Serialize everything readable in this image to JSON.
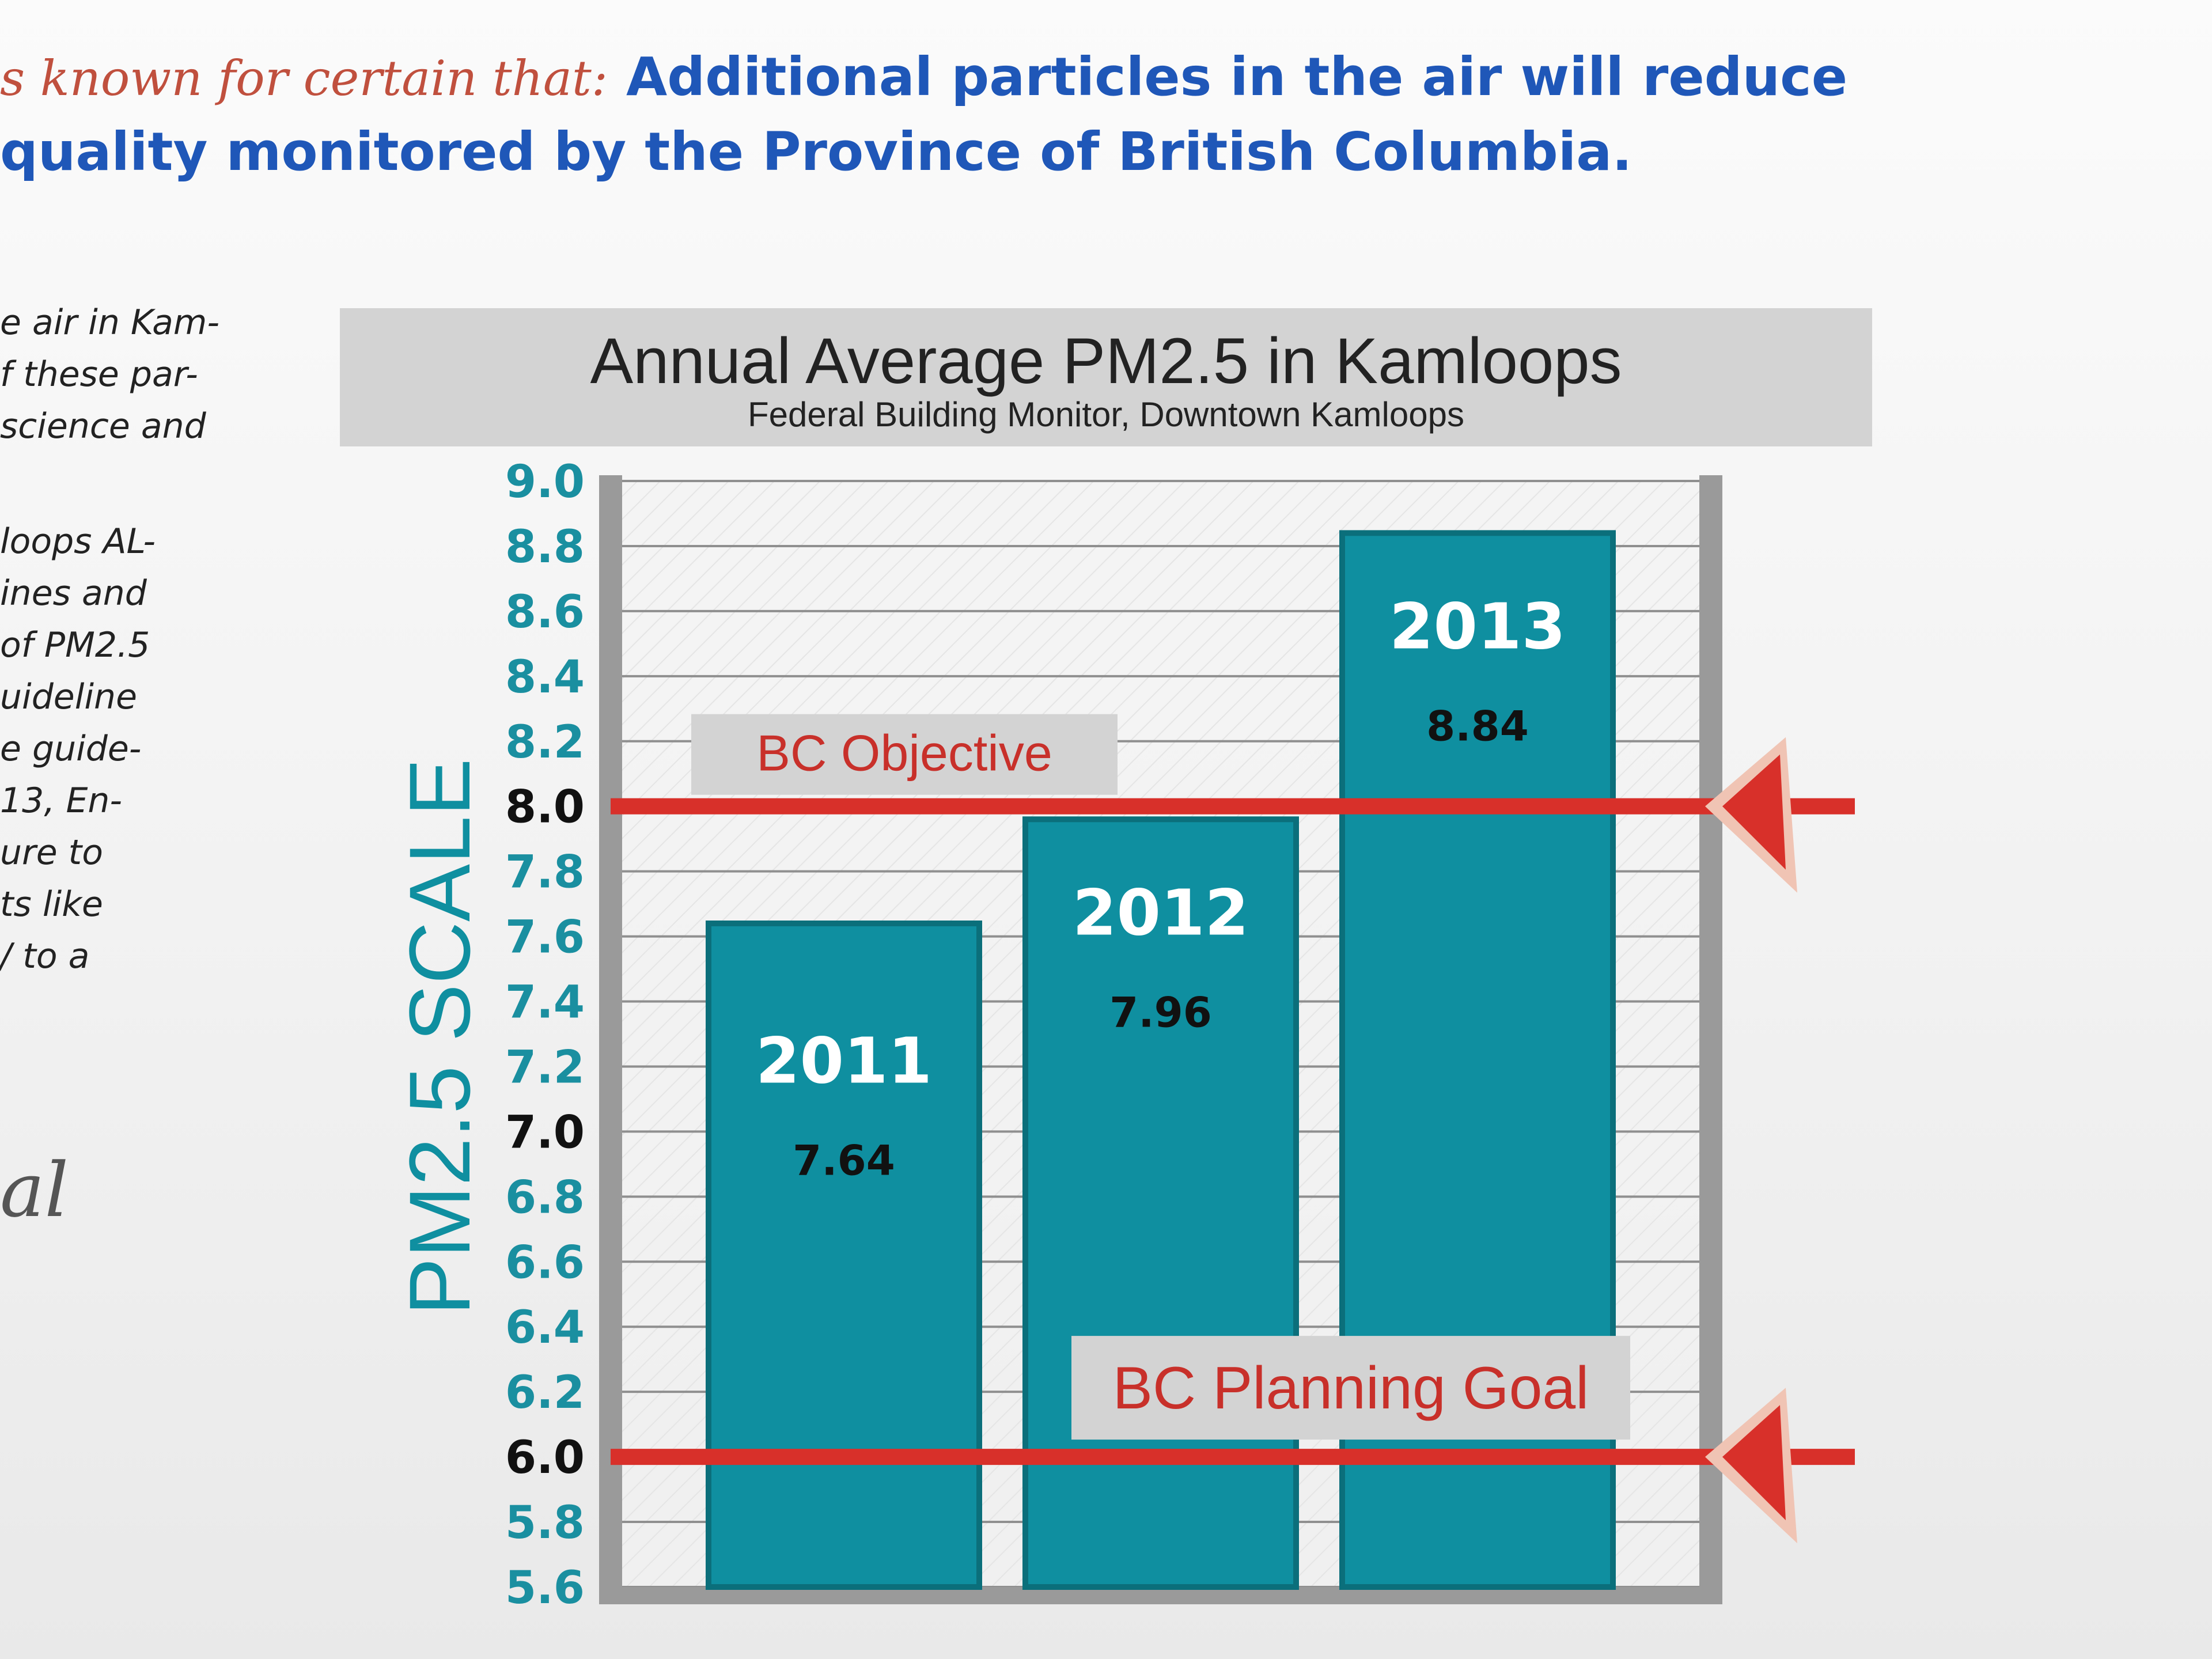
{
  "header": {
    "lead_text": "s known for certain that:",
    "line1_text": "Additional particles in the air will reduce",
    "line2_text": "quality monitored by the Province of British Columbia."
  },
  "side_text": {
    "block1": [
      "e air in Kam-",
      "f these par-",
      "science and"
    ],
    "block2": [
      "loops AL-",
      "ines and",
      "of PM2.5",
      "uideline",
      "e guide-",
      "13, En-",
      "ure to",
      "ts like",
      "/ to a"
    ],
    "fragment": "al"
  },
  "chart_data": {
    "type": "bar",
    "title": "Annual Average PM2.5 in Kamloops",
    "subtitle": "Federal Building Monitor, Downtown Kamloops",
    "ylabel": "PM2.5 SCALE",
    "ylim": [
      5.6,
      9.0
    ],
    "yticks": [
      "9.0",
      "8.8",
      "8.6",
      "8.4",
      "8.2",
      "8.0",
      "7.8",
      "7.6",
      "7.4",
      "7.2",
      "7.0",
      "6.8",
      "6.6",
      "6.4",
      "6.2",
      "6.0",
      "5.8",
      "5.6"
    ],
    "categories": [
      "2011",
      "2012",
      "2013"
    ],
    "values": [
      7.64,
      7.96,
      8.84
    ],
    "value_labels": [
      "7.64",
      "7.96",
      "8.84"
    ],
    "reference_lines": [
      {
        "label": "BC Objective",
        "value": 8.0
      },
      {
        "label": "BC Planning Goal",
        "value": 6.0
      }
    ],
    "grid": true,
    "colors": {
      "bar": "#0f8fa0",
      "bar_edge": "#0b6f7b",
      "reference_line": "#d8302a",
      "tick_label": "#1a8fa0",
      "tick_label_emphasis": "#111111",
      "title_band": "#d3d3d3"
    }
  }
}
